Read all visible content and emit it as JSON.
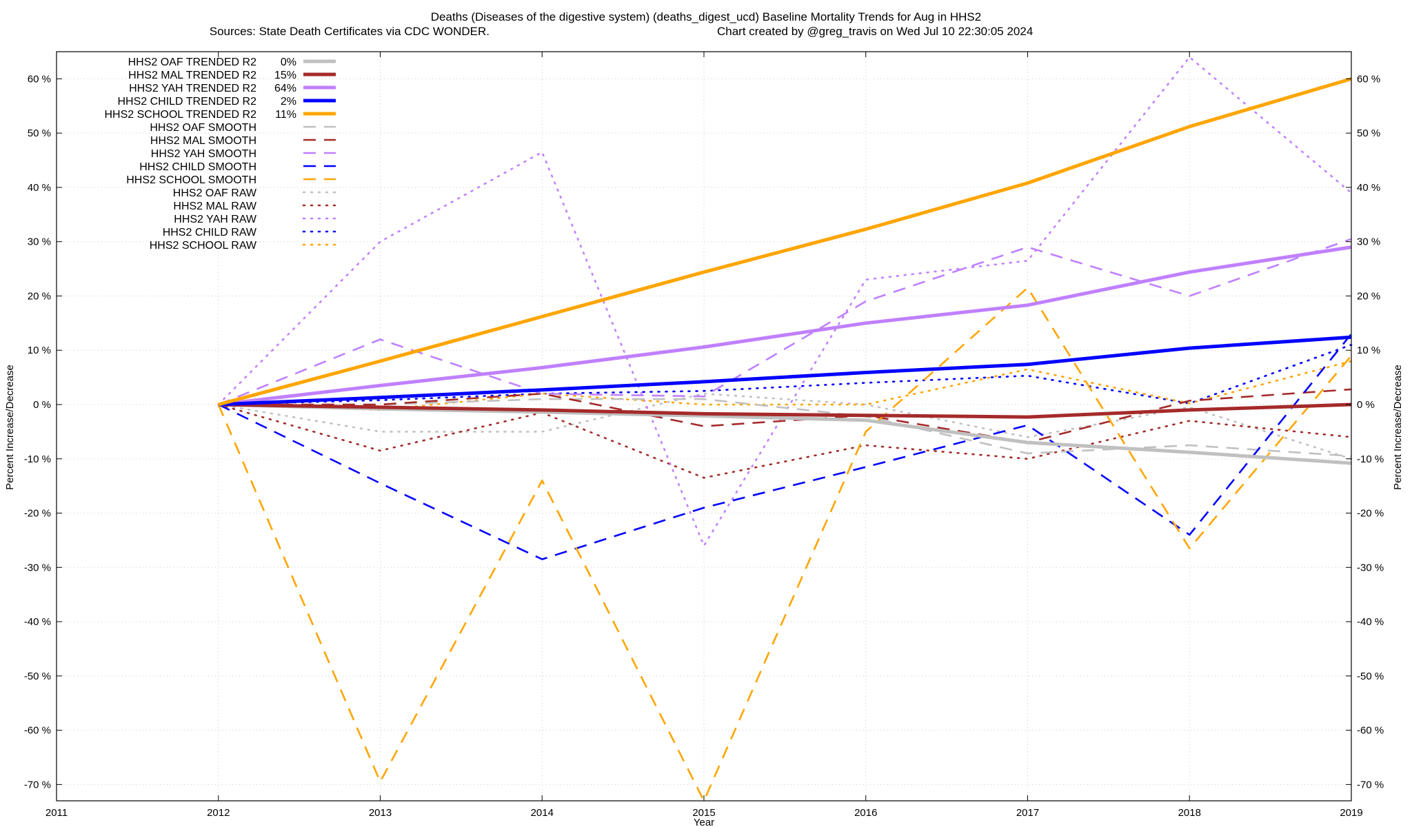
{
  "title_line1": "Deaths (Diseases of the digestive system) (deaths_digest_ucd)  Baseline Mortality Trends for Aug in HHS2",
  "title_line2_left": "Sources: State Death Certificates via CDC WONDER.",
  "title_line2_right": "Chart created by @greg_travis on Wed Jul 10 22:30:05 2024",
  "chart_data": {
    "type": "line",
    "xlabel": "Year",
    "ylabel_left": "Percent Increase/Decrease",
    "ylabel_right": "Percent Increase/Decrease",
    "xlim": [
      2011,
      2019
    ],
    "ylim": [
      -73,
      65
    ],
    "x_ticks": [
      2011,
      2012,
      2013,
      2014,
      2015,
      2016,
      2017,
      2018,
      2019
    ],
    "y_ticks": [
      60,
      50,
      40,
      30,
      20,
      10,
      0,
      -10,
      -20,
      -30,
      -40,
      -50,
      -60,
      -70
    ],
    "y_tick_suffix": " %",
    "grid": true,
    "legend_position": "top-left",
    "x": [
      2012,
      2013,
      2014,
      2015,
      2016,
      2017,
      2018,
      2019
    ],
    "series": [
      {
        "name": "HHS2 OAF TRENDED R2",
        "r2": "0%",
        "color": "#c0c0c0",
        "style": "solid",
        "values": [
          0,
          -0.8,
          -1.4,
          -2.1,
          -2.9,
          -7.0,
          -8.8,
          -10.8
        ]
      },
      {
        "name": "HHS2 MAL TRENDED R2",
        "r2": "15%",
        "color": "#a52a2a",
        "style": "solid",
        "values": [
          0,
          -0.5,
          -1.0,
          -1.7,
          -2.0,
          -2.3,
          -1.0,
          0.0
        ]
      },
      {
        "name": "HHS2 YAH TRENDED R2",
        "r2": "64%",
        "color": "#c080ff",
        "style": "solid",
        "values": [
          0,
          3.5,
          6.8,
          10.6,
          15.0,
          18.3,
          24.4,
          29.0
        ]
      },
      {
        "name": "HHS2 CHILD TRENDED R2",
        "r2": "2%",
        "color": "#0000ff",
        "style": "solid",
        "values": [
          0,
          1.3,
          2.7,
          4.2,
          5.9,
          7.4,
          10.4,
          12.4
        ]
      },
      {
        "name": "HHS2 SCHOOL TRENDED R2",
        "r2": "11%",
        "color": "#ffa500",
        "style": "solid",
        "values": [
          0,
          8.0,
          16.2,
          24.4,
          32.3,
          40.8,
          51.2,
          60.0
        ]
      },
      {
        "name": "HHS2 OAF SMOOTH",
        "r2": "",
        "color": "#c0c0c0",
        "style": "dashed",
        "values": [
          0,
          0,
          1.0,
          1.0,
          -2.2,
          -9.0,
          -7.5,
          -9.5
        ]
      },
      {
        "name": "HHS2 MAL SMOOTH",
        "r2": "",
        "color": "#a52a2a",
        "style": "dashed",
        "values": [
          0,
          0,
          2.0,
          -4.0,
          -2.0,
          -7.0,
          0.7,
          2.8
        ]
      },
      {
        "name": "HHS2 YAH SMOOTH",
        "r2": "",
        "color": "#c080ff",
        "style": "dashed",
        "values": [
          0,
          12.0,
          2.0,
          1.5,
          19.0,
          29.0,
          20.0,
          30.5
        ]
      },
      {
        "name": "HHS2 CHILD SMOOTH",
        "r2": "",
        "color": "#0000ff",
        "style": "dashed",
        "values": [
          0,
          -14.5,
          -28.5,
          -19.0,
          -11.5,
          -3.8,
          -24.0,
          13.0
        ]
      },
      {
        "name": "HHS2 SCHOOL SMOOTH",
        "r2": "",
        "color": "#ffa500",
        "style": "dashed",
        "values": [
          0,
          -69.5,
          -14.0,
          -73.0,
          -5.0,
          21.5,
          -26.5,
          9.0
        ]
      },
      {
        "name": "HHS2 OAF RAW",
        "r2": "",
        "color": "#c0c0c0",
        "style": "dotted",
        "values": [
          0,
          -5.0,
          -5.0,
          2.0,
          0.0,
          -6.0,
          -0.5,
          -10.0
        ]
      },
      {
        "name": "HHS2 MAL RAW",
        "r2": "",
        "color": "#a52a2a",
        "style": "dotted",
        "values": [
          0,
          -8.5,
          -1.5,
          -13.5,
          -7.5,
          -10.0,
          -3.0,
          -6.0
        ]
      },
      {
        "name": "HHS2 YAH RAW",
        "r2": "",
        "color": "#c080ff",
        "style": "dotted",
        "values": [
          0,
          30.0,
          46.5,
          -26.0,
          23.0,
          26.5,
          64.0,
          39.0
        ]
      },
      {
        "name": "HHS2 CHILD RAW",
        "r2": "",
        "color": "#0000ff",
        "style": "dotted",
        "values": [
          0,
          0.8,
          2.0,
          2.5,
          4.0,
          5.3,
          0.2,
          11.0
        ]
      },
      {
        "name": "HHS2 SCHOOL RAW",
        "r2": "",
        "color": "#ffa500",
        "style": "dotted",
        "values": [
          0,
          -1.0,
          2.0,
          0.0,
          0.0,
          6.5,
          0.2,
          8.0
        ]
      }
    ]
  }
}
